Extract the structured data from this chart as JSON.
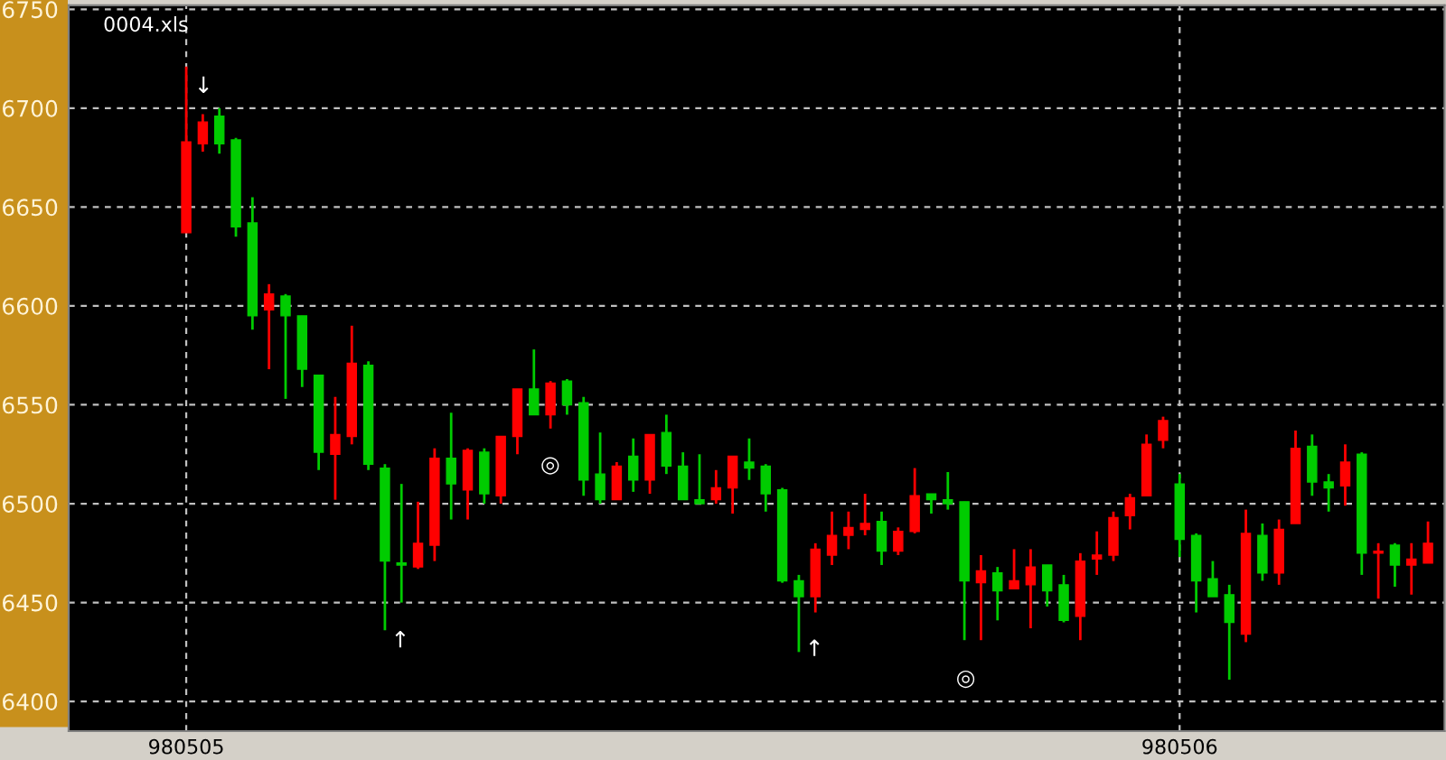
{
  "chart_data": {
    "type": "candlestick",
    "title": "0004.xls",
    "categories": [
      "980505",
      null,
      null,
      null,
      null,
      null,
      null,
      null,
      null,
      null,
      null,
      null,
      null,
      null,
      null,
      null,
      null,
      null,
      null,
      null,
      null,
      null,
      null,
      null,
      null,
      null,
      null,
      null,
      null,
      null,
      null,
      null,
      null,
      null,
      null,
      null,
      null,
      null,
      null,
      null,
      null,
      null,
      null,
      null,
      null,
      null,
      null,
      null,
      null,
      null,
      null,
      null,
      null,
      null,
      null,
      null,
      null,
      null,
      null,
      null,
      "980506",
      null,
      null,
      null,
      null,
      null,
      null,
      null,
      null,
      null,
      null,
      null,
      null,
      null,
      null,
      null
    ],
    "ohlc": [
      [
        6637,
        6721,
        6637,
        6683
      ],
      [
        6682,
        6697,
        6678,
        6693
      ],
      [
        6696,
        6700,
        6677,
        6682
      ],
      [
        6684,
        6685,
        6635,
        6640
      ],
      [
        6642,
        6655,
        6588,
        6595
      ],
      [
        6598,
        6611,
        6568,
        6606
      ],
      [
        6605,
        6606,
        6553,
        6595
      ],
      [
        6595,
        6595,
        6559,
        6568
      ],
      [
        6565,
        6565,
        6517,
        6526
      ],
      [
        6525,
        6554,
        6502,
        6535
      ],
      [
        6534,
        6590,
        6530,
        6571
      ],
      [
        6570,
        6572,
        6517,
        6520
      ],
      [
        6518,
        6520,
        6436,
        6471
      ],
      [
        6470,
        6510,
        6450,
        6469
      ],
      [
        6468,
        6501,
        6467,
        6480
      ],
      [
        6479,
        6528,
        6471,
        6523
      ],
      [
        6523,
        6546,
        6492,
        6510
      ],
      [
        6507,
        6528,
        6492,
        6527
      ],
      [
        6526,
        6528,
        6500,
        6505
      ],
      [
        6504,
        6534,
        6500,
        6534
      ],
      [
        6534,
        6558,
        6525,
        6558
      ],
      [
        6558,
        6578,
        6545,
        6545
      ],
      [
        6545,
        6562,
        6538,
        6561
      ],
      [
        6562,
        6563,
        6545,
        6550
      ],
      [
        6551,
        6554,
        6504,
        6512
      ],
      [
        6515,
        6536,
        6500,
        6502
      ],
      [
        6502,
        6521,
        6502,
        6519
      ],
      [
        6524,
        6533,
        6506,
        6512
      ],
      [
        6512,
        6535,
        6505,
        6535
      ],
      [
        6536,
        6545,
        6515,
        6519
      ],
      [
        6519,
        6526,
        6502,
        6502
      ],
      [
        6502,
        6525,
        6500,
        6500
      ],
      [
        6502,
        6517,
        6500,
        6508
      ],
      [
        6508,
        6524,
        6495,
        6524
      ],
      [
        6521,
        6533,
        6512,
        6518
      ],
      [
        6519,
        6520,
        6496,
        6505
      ],
      [
        6507,
        6508,
        6460,
        6461
      ],
      [
        6461,
        6464,
        6425,
        6453
      ],
      [
        6453,
        6480,
        6445,
        6477
      ],
      [
        6474,
        6496,
        6469,
        6484
      ],
      [
        6484,
        6496,
        6477,
        6488
      ],
      [
        6487,
        6505,
        6484,
        6490
      ],
      [
        6491,
        6496,
        6469,
        6476
      ],
      [
        6476,
        6488,
        6474,
        6486
      ],
      [
        6486,
        6518,
        6485,
        6504
      ],
      [
        6505,
        6505,
        6495,
        6502
      ],
      [
        6502,
        6516,
        6497,
        6500
      ],
      [
        6501,
        6501,
        6431,
        6461
      ],
      [
        6460,
        6474,
        6431,
        6466
      ],
      [
        6465,
        6468,
        6441,
        6456
      ],
      [
        6457,
        6477,
        6457,
        6461
      ],
      [
        6459,
        6477,
        6437,
        6468
      ],
      [
        6469,
        6469,
        6448,
        6456
      ],
      [
        6459,
        6464,
        6440,
        6441
      ],
      [
        6443,
        6475,
        6431,
        6471
      ],
      [
        6472,
        6486,
        6464,
        6474
      ],
      [
        6474,
        6496,
        6471,
        6493
      ],
      [
        6494,
        6505,
        6487,
        6503
      ],
      [
        6504,
        6535,
        6504,
        6530
      ],
      [
        6532,
        6544,
        6528,
        6542
      ],
      [
        6510,
        6515,
        6473,
        6482
      ],
      [
        6484,
        6485,
        6445,
        6461
      ],
      [
        6462,
        6471,
        6453,
        6453
      ],
      [
        6454,
        6459,
        6411,
        6440
      ],
      [
        6434,
        6497,
        6430,
        6485
      ],
      [
        6484,
        6490,
        6461,
        6465
      ],
      [
        6465,
        6492,
        6459,
        6487
      ],
      [
        6490,
        6537,
        6490,
        6528
      ],
      [
        6529,
        6535,
        6504,
        6511
      ],
      [
        6511,
        6515,
        6496,
        6508
      ],
      [
        6509,
        6530,
        6499,
        6521
      ],
      [
        6525,
        6526,
        6464,
        6475
      ],
      [
        6475,
        6480,
        6452,
        6476
      ],
      [
        6479,
        6480,
        6458,
        6469
      ],
      [
        6469,
        6480,
        6454,
        6472
      ],
      [
        6470,
        6491,
        6470,
        6480
      ]
    ],
    "colors": [
      "#ff0000",
      "#ff0000",
      "#00cc00",
      "#00cc00",
      "#00cc00",
      "#ff0000",
      "#00cc00",
      "#00cc00",
      "#00cc00",
      "#ff0000",
      "#ff0000",
      "#00cc00",
      "#00cc00",
      "#00cc00",
      "#ff0000",
      "#ff0000",
      "#00cc00",
      "#ff0000",
      "#00cc00",
      "#ff0000",
      "#ff0000",
      "#00cc00",
      "#ff0000",
      "#00cc00",
      "#00cc00",
      "#00cc00",
      "#ff0000",
      "#00cc00",
      "#ff0000",
      "#00cc00",
      "#00cc00",
      "#00cc00",
      "#ff0000",
      "#ff0000",
      "#00cc00",
      "#00cc00",
      "#00cc00",
      "#00cc00",
      "#ff0000",
      "#ff0000",
      "#ff0000",
      "#ff0000",
      "#00cc00",
      "#ff0000",
      "#ff0000",
      "#00cc00",
      "#00cc00",
      "#00cc00",
      "#ff0000",
      "#00cc00",
      "#ff0000",
      "#ff0000",
      "#00cc00",
      "#00cc00",
      "#ff0000",
      "#ff0000",
      "#ff0000",
      "#ff0000",
      "#ff0000",
      "#ff0000",
      "#00cc00",
      "#00cc00",
      "#00cc00",
      "#00cc00",
      "#ff0000",
      "#00cc00",
      "#ff0000",
      "#ff0000",
      "#00cc00",
      "#00cc00",
      "#ff0000",
      "#00cc00",
      "#ff0000",
      "#00cc00",
      "#ff0000",
      "#ff0000"
    ],
    "ylim": [
      6385,
      6752
    ],
    "yticks": [
      6400,
      6450,
      6500,
      6550,
      6600,
      6650,
      6700,
      6750
    ],
    "grid": true,
    "annotations": [
      "↓",
      "↑",
      "◎",
      "↑",
      "◎"
    ]
  }
}
